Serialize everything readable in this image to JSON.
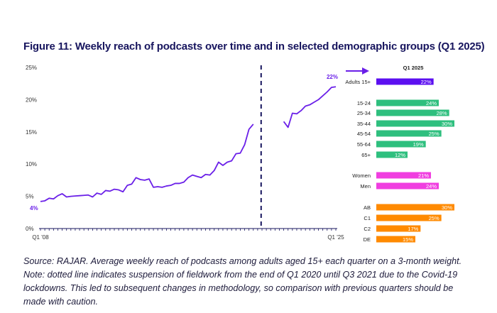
{
  "title": "Figure 11: Weekly reach of podcasts over time and in selected demographic groups (Q1 2025)",
  "colors": {
    "line": "#6a1fe8",
    "axis": "#17155e",
    "divider": "#17155e",
    "adults": "#5b0ff0",
    "age": "#2ebf7e",
    "gender": "#f03ee0",
    "sec": "#ff8a00",
    "text": "#333333"
  },
  "chart_data": [
    {
      "type": "line",
      "title": "Weekly reach of podcasts over time",
      "xlabel": "",
      "ylabel": "",
      "ylim": [
        0,
        25
      ],
      "yticks": [
        "0%",
        "5%",
        "10%",
        "15%",
        "20%",
        "25%"
      ],
      "ytick_values": [
        0,
        5,
        10,
        15,
        20,
        25
      ],
      "xtick_labels": [
        {
          "index": 0,
          "label": "Q1 '08"
        },
        {
          "index": 68,
          "label": "Q1 '25"
        }
      ],
      "x_range": [
        "Q1 2008",
        "Q1 2025"
      ],
      "grid": false,
      "annotations": [
        {
          "index": 0,
          "label": "4%"
        },
        {
          "index": 68,
          "label": "22%"
        },
        {
          "type": "dashed-vertical",
          "between": [
            "Q1 2020",
            "Q3 2021"
          ],
          "meaning": "suspension of fieldwork"
        }
      ],
      "series": [
        {
          "name": "Adults 15+",
          "values": [
            4.2,
            4.3,
            4.7,
            4.6,
            5.1,
            5.4,
            4.9,
            5.0,
            5.05,
            5.1,
            5.15,
            5.2,
            4.9,
            5.5,
            5.3,
            5.9,
            5.8,
            6.1,
            6.0,
            5.7,
            6.7,
            6.9,
            7.9,
            7.6,
            7.5,
            7.7,
            6.4,
            6.5,
            6.4,
            6.6,
            6.7,
            7.0,
            7.0,
            7.2,
            7.9,
            8.3,
            8.1,
            7.9,
            8.4,
            8.3,
            9.0,
            10.3,
            9.8,
            10.3,
            10.5,
            11.6,
            11.7,
            13.0,
            15.4,
            16.2,
            null,
            null,
            null,
            null,
            null,
            null,
            16.6,
            15.7,
            17.9,
            17.8,
            18.3,
            19.0,
            19.2,
            19.6,
            20.0,
            20.6,
            21.2,
            21.9,
            22.0
          ]
        }
      ]
    },
    {
      "type": "bar",
      "title": "Q1 2025",
      "orientation": "horizontal",
      "xlim": [
        0,
        30
      ],
      "groups": [
        {
          "name": "total",
          "color_key": "adults",
          "categories": [
            "Adults 15+"
          ],
          "values": [
            22
          ]
        },
        {
          "name": "age",
          "color_key": "age",
          "categories": [
            "15-24",
            "25-34",
            "35-44",
            "45-54",
            "55-64",
            "65+"
          ],
          "values": [
            24,
            28,
            30,
            25,
            19,
            12
          ]
        },
        {
          "name": "gender",
          "color_key": "gender",
          "categories": [
            "Women",
            "Men"
          ],
          "values": [
            21,
            24
          ]
        },
        {
          "name": "socio-economic",
          "color_key": "sec",
          "categories": [
            "AB",
            "C1",
            "C2",
            "DE"
          ],
          "values": [
            30,
            25,
            17,
            15
          ]
        }
      ]
    }
  ],
  "notes": [
    "Source: RAJAR. Average weekly reach of podcasts among adults aged 15+ each quarter on a 3-month weight.",
    "Note: dotted line indicates suspension of fieldwork from the end of Q1 2020 until Q3 2021 due to the Covid-19",
    "lockdowns. This led to subsequent changes in methodology, so comparison with previous quarters should be",
    "made with caution."
  ]
}
